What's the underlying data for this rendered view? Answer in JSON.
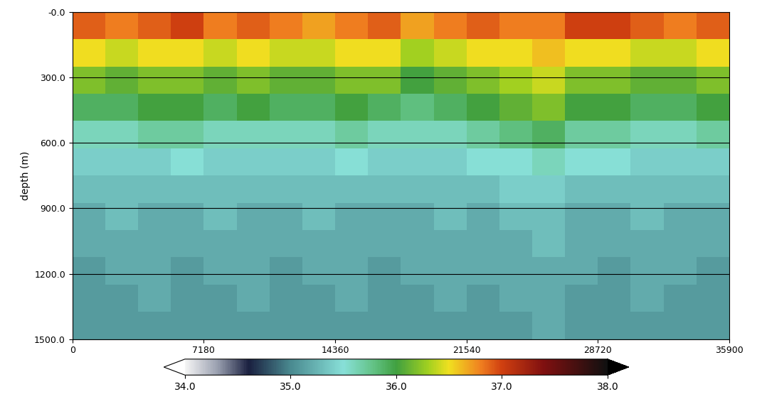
{
  "chart_data": {
    "type": "heatmap",
    "ylabel": "depth (m)",
    "xlim": [
      0,
      35900
    ],
    "xticks": [
      0,
      7180,
      14360,
      21540,
      28720,
      35900
    ],
    "ylim": [
      1500,
      0
    ],
    "yticks": [
      {
        "value": 0,
        "label": "-0.0"
      },
      {
        "value": 300,
        "label": "300.0"
      },
      {
        "value": 600,
        "label": "600.0"
      },
      {
        "value": 900,
        "label": "900.0"
      },
      {
        "value": 1200,
        "label": "1200.0"
      },
      {
        "value": 1500,
        "label": "1500.0"
      }
    ],
    "grid": "y",
    "x_edges": [
      0,
      1795,
      3590,
      5385,
      7180,
      8975,
      10770,
      12565,
      14360,
      16155,
      17950,
      19745,
      21540,
      23335,
      25130,
      26925,
      28720,
      30515,
      32310,
      34105,
      35900
    ],
    "y_edges": [
      0,
      125,
      250,
      375,
      500,
      625,
      750,
      875,
      1000,
      1125,
      1250,
      1375,
      1500
    ],
    "cells": [
      [
        36.9,
        36.8,
        36.9,
        37.0,
        36.8,
        36.9,
        36.8,
        36.7,
        36.8,
        36.9,
        36.7,
        36.8,
        36.9,
        36.8,
        36.8,
        37.0,
        37.0,
        36.9,
        36.8,
        36.9
      ],
      [
        36.5,
        36.4,
        36.5,
        36.5,
        36.4,
        36.5,
        36.4,
        36.4,
        36.5,
        36.5,
        36.3,
        36.4,
        36.5,
        36.5,
        36.6,
        36.5,
        36.5,
        36.4,
        36.4,
        36.5
      ],
      [
        36.2,
        36.1,
        36.2,
        36.2,
        36.1,
        36.2,
        36.1,
        36.1,
        36.2,
        36.2,
        36.0,
        36.1,
        36.2,
        36.3,
        36.4,
        36.2,
        36.2,
        36.1,
        36.1,
        36.2
      ],
      [
        35.9,
        35.9,
        36.0,
        36.0,
        35.9,
        36.0,
        35.9,
        35.9,
        36.0,
        35.9,
        35.8,
        35.9,
        36.0,
        36.1,
        36.2,
        36.0,
        36.0,
        35.9,
        35.9,
        36.0
      ],
      [
        35.6,
        35.6,
        35.7,
        35.7,
        35.6,
        35.6,
        35.6,
        35.6,
        35.7,
        35.6,
        35.6,
        35.6,
        35.7,
        35.8,
        35.9,
        35.7,
        35.7,
        35.6,
        35.6,
        35.7
      ],
      [
        35.4,
        35.4,
        35.4,
        35.5,
        35.4,
        35.4,
        35.4,
        35.4,
        35.5,
        35.4,
        35.4,
        35.4,
        35.5,
        35.5,
        35.6,
        35.5,
        35.5,
        35.4,
        35.4,
        35.4
      ],
      [
        35.3,
        35.3,
        35.3,
        35.3,
        35.3,
        35.3,
        35.3,
        35.3,
        35.3,
        35.3,
        35.3,
        35.3,
        35.3,
        35.4,
        35.4,
        35.3,
        35.3,
        35.3,
        35.3,
        35.3
      ],
      [
        35.2,
        35.3,
        35.2,
        35.2,
        35.3,
        35.2,
        35.2,
        35.3,
        35.2,
        35.2,
        35.2,
        35.3,
        35.2,
        35.3,
        35.3,
        35.2,
        35.2,
        35.3,
        35.2,
        35.2
      ],
      [
        35.2,
        35.2,
        35.2,
        35.2,
        35.2,
        35.2,
        35.2,
        35.2,
        35.2,
        35.2,
        35.2,
        35.2,
        35.2,
        35.2,
        35.3,
        35.2,
        35.2,
        35.2,
        35.2,
        35.2
      ],
      [
        35.1,
        35.2,
        35.2,
        35.1,
        35.2,
        35.2,
        35.1,
        35.2,
        35.2,
        35.1,
        35.2,
        35.2,
        35.2,
        35.2,
        35.2,
        35.2,
        35.1,
        35.2,
        35.2,
        35.1
      ],
      [
        35.1,
        35.1,
        35.2,
        35.1,
        35.1,
        35.2,
        35.1,
        35.1,
        35.2,
        35.1,
        35.1,
        35.2,
        35.1,
        35.2,
        35.2,
        35.1,
        35.1,
        35.2,
        35.1,
        35.1
      ],
      [
        35.1,
        35.1,
        35.1,
        35.1,
        35.1,
        35.1,
        35.1,
        35.1,
        35.1,
        35.1,
        35.1,
        35.1,
        35.1,
        35.1,
        35.2,
        35.1,
        35.1,
        35.1,
        35.1,
        35.1
      ]
    ],
    "colorbar_range": [
      34.0,
      38.0
    ],
    "colorbar_ticks": [
      {
        "value": 34.0,
        "label": "34.0"
      },
      {
        "value": 35.0,
        "label": "35.0"
      },
      {
        "value": 36.0,
        "label": "36.0"
      },
      {
        "value": 37.0,
        "label": "37.0"
      },
      {
        "value": 38.0,
        "label": "38.0"
      }
    ]
  }
}
